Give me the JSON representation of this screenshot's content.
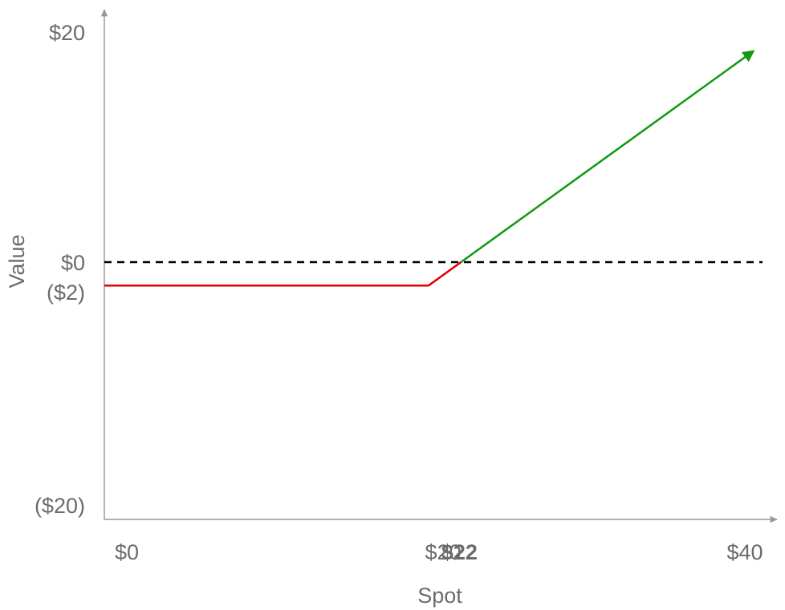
{
  "chart_data": {
    "type": "line",
    "title": "",
    "xlabel": "Spot",
    "ylabel": "Value",
    "xlim": [
      0,
      40
    ],
    "ylim": [
      -20,
      20
    ],
    "x_ticks": [
      {
        "value": 0,
        "label": "$0",
        "bold": false
      },
      {
        "value": 20,
        "label": "$20",
        "bold": false
      },
      {
        "value": 22,
        "label": "$22",
        "bold": true
      },
      {
        "value": 40,
        "label": "$40",
        "bold": false
      }
    ],
    "y_ticks": [
      {
        "value": 20,
        "label": "$20"
      },
      {
        "value": 0,
        "label": "$0"
      },
      {
        "value": -2,
        "label": "($2)"
      },
      {
        "value": -20,
        "label": "($20)"
      }
    ],
    "reference_line": {
      "y": 0,
      "style": "dashed",
      "color": "#000000"
    },
    "series": [
      {
        "color": "#e00000",
        "points": [
          {
            "x": 0,
            "y": -2
          },
          {
            "x": 20,
            "y": -2
          },
          {
            "x": 22,
            "y": 0
          }
        ]
      },
      {
        "color": "#119911",
        "points": [
          {
            "x": 22,
            "y": 0
          },
          {
            "x": 40,
            "y": 18
          }
        ],
        "arrow_end": true
      }
    ],
    "grid": false,
    "legend": "none",
    "axis_color": "#999999",
    "label_color": "#6b6b6b"
  }
}
